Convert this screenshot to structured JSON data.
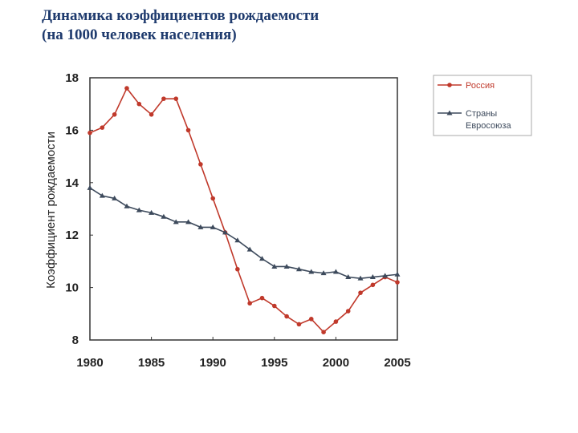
{
  "header": {
    "title_line1": "Динамика  коэффициентов рождаемости",
    "title_line2": " (на 1000 человек населения)"
  },
  "chart_data": {
    "type": "line",
    "title": "",
    "xlabel": "",
    "ylabel": "Коэффициент рождаемости",
    "xlim": [
      1980,
      2005
    ],
    "ylim": [
      8,
      18
    ],
    "x_ticks": [
      "1980",
      "1985",
      "1990",
      "1995",
      "2000",
      "2005"
    ],
    "y_ticks": [
      "8",
      "10",
      "12",
      "14",
      "16",
      "18"
    ],
    "grid": false,
    "legend_position": "right",
    "x": [
      1980,
      1981,
      1982,
      1983,
      1984,
      1985,
      1986,
      1987,
      1988,
      1989,
      1990,
      1991,
      1992,
      1993,
      1994,
      1995,
      1996,
      1997,
      1998,
      1999,
      2000,
      2001,
      2002,
      2003,
      2004,
      2005
    ],
    "series": [
      {
        "name": "Россия",
        "color": "#c0392b",
        "marker": "circle",
        "values": [
          15.9,
          16.1,
          16.6,
          17.6,
          17.0,
          16.6,
          17.2,
          17.2,
          16.0,
          14.7,
          13.4,
          12.1,
          10.7,
          9.4,
          9.6,
          9.3,
          8.9,
          8.6,
          8.8,
          8.3,
          8.7,
          9.1,
          9.8,
          10.1,
          10.4,
          10.2
        ]
      },
      {
        "name": "Страны Евросоюза",
        "color": "#3d4a5c",
        "marker": "triangle",
        "values": [
          13.8,
          13.5,
          13.4,
          13.1,
          12.95,
          12.85,
          12.7,
          12.5,
          12.5,
          12.3,
          12.3,
          12.1,
          11.8,
          11.45,
          11.1,
          10.8,
          10.8,
          10.7,
          10.6,
          10.55,
          10.6,
          10.4,
          10.35,
          10.4,
          10.45,
          10.5
        ]
      }
    ]
  },
  "legend": {
    "items": [
      {
        "label": "Россия"
      },
      {
        "label_line1": "Страны",
        "label_line2": "Евросоюза"
      }
    ]
  }
}
